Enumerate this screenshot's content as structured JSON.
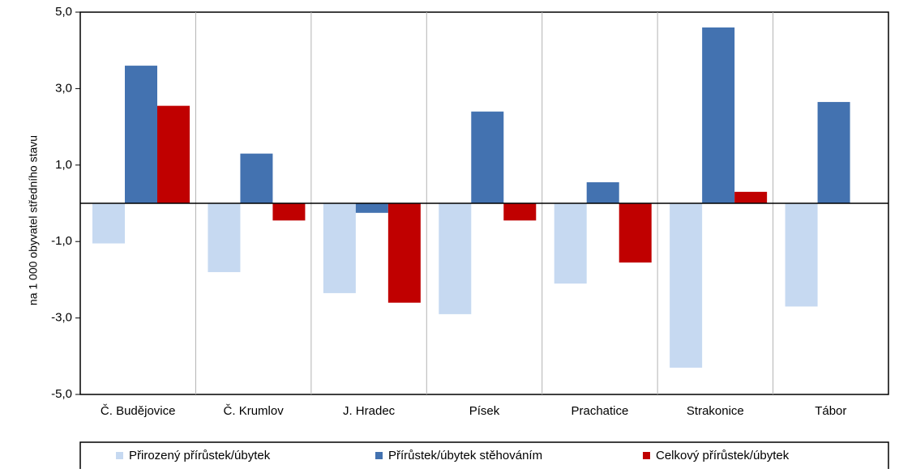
{
  "chart_data": {
    "type": "bar",
    "title": "",
    "xlabel": "",
    "ylabel": "na 1 000 obyvatel středního stavu",
    "ylim": [
      -5.0,
      5.0
    ],
    "yticks": [
      "5,0",
      "3,0",
      "1,0",
      "-1,0",
      "-3,0",
      "-5,0"
    ],
    "ytick_values": [
      5,
      3,
      1,
      -1,
      -3,
      -5
    ],
    "grid": true,
    "legend_position": "bottom",
    "categories": [
      "Č. Budějovice",
      "Č. Krumlov",
      "J. Hradec",
      "Písek",
      "Prachatice",
      "Strakonice",
      "Tábor"
    ],
    "series": [
      {
        "name": "Přirozený přírůstek/úbytek",
        "color": "#c6d9f1",
        "values": [
          -1.05,
          -1.8,
          -2.35,
          -2.9,
          -2.1,
          -4.3,
          -2.7
        ]
      },
      {
        "name": "Přírůstek/úbytek stěhováním",
        "color": "#4372b0",
        "values": [
          3.6,
          1.3,
          -0.25,
          2.4,
          0.55,
          4.6,
          2.65
        ]
      },
      {
        "name": "Celkový přírůstek/úbytek",
        "color": "#c00000",
        "values": [
          2.55,
          -0.45,
          -2.6,
          -0.45,
          -1.55,
          0.3,
          0.0
        ]
      }
    ]
  }
}
